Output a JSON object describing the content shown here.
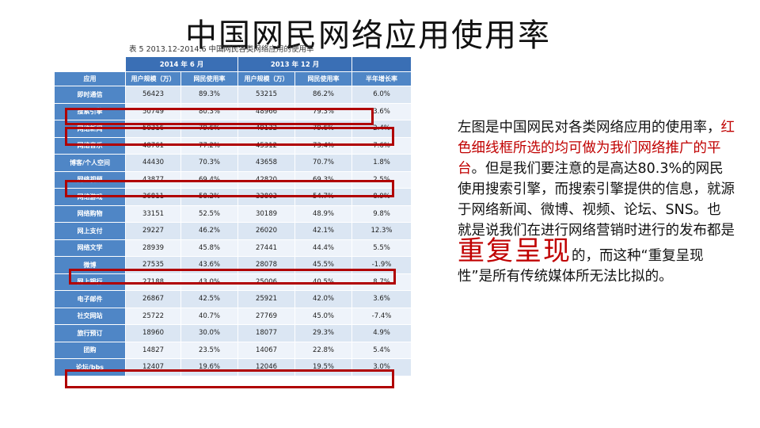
{
  "title": "中国网民网络应用使用率",
  "caption": "表 5  2013.12-2014.6 中国网民各类网络应用的使用率",
  "table": {
    "group_headers": [
      "2014 年 6 月",
      "2013 年 12 月"
    ],
    "columns": [
      "应用",
      "用户规模（万）",
      "网民使用率",
      "用户规模（万）",
      "网民使用率",
      "半年增长率"
    ],
    "rows": [
      [
        "即时通信",
        "56423",
        "89.3%",
        "53215",
        "86.2%",
        "6.0%"
      ],
      [
        "搜索引擎",
        "50749",
        "80.3%",
        "48966",
        "79.3%",
        "3.6%"
      ],
      [
        "网络新闻",
        "50316",
        "79.6%",
        "49132",
        "79.6%",
        "2.4%"
      ],
      [
        "网络音乐",
        "48761",
        "77.2%",
        "45312",
        "73.4%",
        "7.6%"
      ],
      [
        "博客/个人空间",
        "44430",
        "70.3%",
        "43658",
        "70.7%",
        "1.8%"
      ],
      [
        "网络视频",
        "43877",
        "69.4%",
        "42820",
        "69.3%",
        "2.5%"
      ],
      [
        "网络游戏",
        "36811",
        "58.2%",
        "33803",
        "54.7%",
        "8.9%"
      ],
      [
        "网络购物",
        "33151",
        "52.5%",
        "30189",
        "48.9%",
        "9.8%"
      ],
      [
        "网上支付",
        "29227",
        "46.2%",
        "26020",
        "42.1%",
        "12.3%"
      ],
      [
        "网络文学",
        "28939",
        "45.8%",
        "27441",
        "44.4%",
        "5.5%"
      ],
      [
        "微博",
        "27535",
        "43.6%",
        "28078",
        "45.5%",
        "-1.9%"
      ],
      [
        "网上银行",
        "27188",
        "43.0%",
        "25006",
        "40.5%",
        "8.7%"
      ],
      [
        "电子邮件",
        "26867",
        "42.5%",
        "25921",
        "42.0%",
        "3.6%"
      ],
      [
        "社交网站",
        "25722",
        "40.7%",
        "27769",
        "45.0%",
        "-7.4%"
      ],
      [
        "旅行预订",
        "18960",
        "30.0%",
        "18077",
        "29.3%",
        "4.9%"
      ],
      [
        "团购",
        "14827",
        "23.5%",
        "14067",
        "22.8%",
        "5.4%"
      ],
      [
        "论坛/bbs",
        "12407",
        "19.6%",
        "12046",
        "19.5%",
        "3.0%"
      ]
    ]
  },
  "description": {
    "p1": "左图是中国网民对各类网络应用的使用率，",
    "p2_red": "红色细线框所选的均可做为我们网络推广的平台",
    "p3": "。但是我们要注意的是高达80.3%的网民使用搜索引擎，而搜索引擎提供的信息，就源于网络新闻、微博、视频、论坛、SNS。也就是说我们在进行网络营销时进行的发布都是",
    "p4_big": "重复呈现",
    "p5": "的，而这种“重复呈现性”是所有传统媒体所无法比拟的。"
  },
  "colors": {
    "header_blue": "#3a6fb5",
    "cell_blue": "#4f86c6",
    "highlight_red": "#b00000"
  }
}
